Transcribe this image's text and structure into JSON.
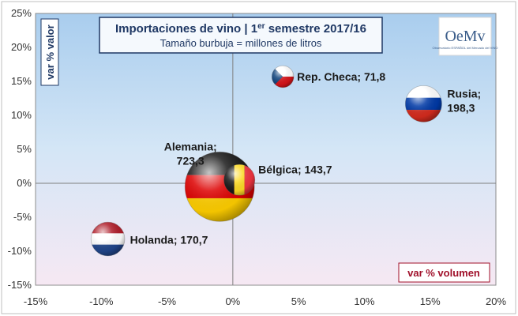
{
  "chart_data": {
    "type": "scatter",
    "title": "Importaciones de vino | 1er semestre 2017/16",
    "title_parts": {
      "before": "Importaciones de vino | 1",
      "superscript": "er",
      "after": " semestre 2017/16"
    },
    "subtitle": "Tamaño burbuja = millones de litros",
    "xlabel": "var % volumen",
    "ylabel": "var % valor",
    "xlim": [
      -15,
      20
    ],
    "ylim": [
      -15,
      25
    ],
    "x_ticks": [
      "-15%",
      "-10%",
      "-5%",
      "0%",
      "5%",
      "10%",
      "15%",
      "20%"
    ],
    "y_ticks": [
      "25%",
      "20%",
      "15%",
      "10%",
      "5%",
      "0%",
      "-5%",
      "-10%",
      "-15%"
    ],
    "grid": false,
    "series": [
      {
        "points": [
          {
            "label": "Alemania",
            "value_label": "723,3",
            "size": 723.3,
            "x": -1.0,
            "y": -0.5,
            "flag": "germany-flag"
          },
          {
            "label": "Bélgica",
            "value_label": "143,7",
            "size": 143.7,
            "x": 0.5,
            "y": 0.5,
            "flag": "belgium-flag"
          },
          {
            "label": "Rep. Checa",
            "value_label": "71,8",
            "size": 71.8,
            "x": 3.8,
            "y": 15.7,
            "flag": "czech-flag"
          },
          {
            "label": "Rusia",
            "value_label": "198,3",
            "size": 198.3,
            "x": 14.5,
            "y": 11.7,
            "flag": "russia-flag"
          },
          {
            "label": "Holanda",
            "value_label": "170,7",
            "size": 170.7,
            "x": -9.5,
            "y": -8.2,
            "flag": "netherlands-flag"
          }
        ]
      }
    ]
  },
  "logo": {
    "text": "OeMv",
    "subtext": "Observatorio ESPAÑOL del Mercado del VINO",
    "icon": "oemv-logo"
  },
  "colors": {
    "frame": "#1f3864",
    "plot_top": "#a9cdee",
    "plot_bottom": "#f6e8f3",
    "ylabel": "#1f3864",
    "xlabel": "#a0102a"
  }
}
